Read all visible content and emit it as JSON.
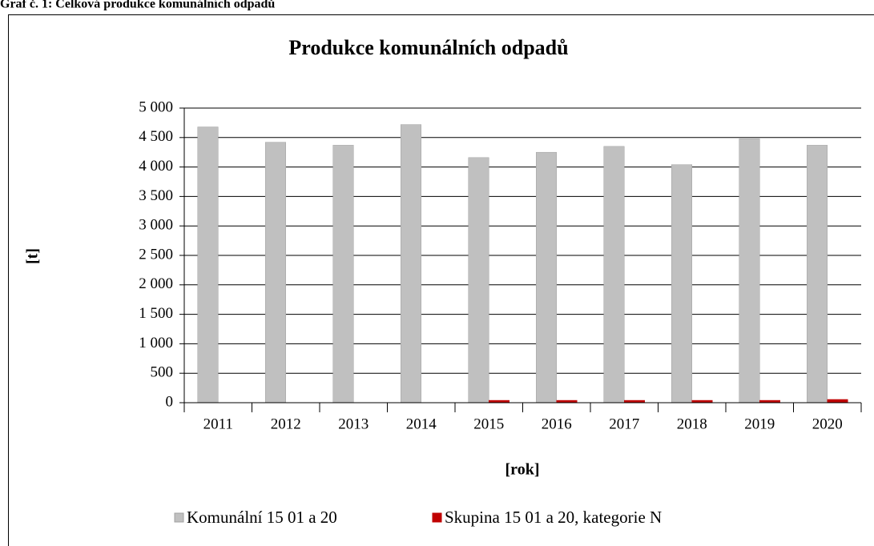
{
  "caption": "Graf č. 1: Celková produkce komunálních odpadů",
  "chart_data": {
    "type": "bar",
    "title": "Produkce komunálních odpadů",
    "y_label": "[t]",
    "x_label": "[rok]",
    "categories": [
      "2011",
      "2012",
      "2013",
      "2014",
      "2015",
      "2016",
      "2017",
      "2018",
      "2019",
      "2020"
    ],
    "series": [
      {
        "name": "Komunální 15 01 a 20",
        "color": "#c0c0c0",
        "values": [
          4680,
          4420,
          4370,
          4720,
          4160,
          4250,
          4350,
          4040,
          4480,
          4370
        ]
      },
      {
        "name": "Skupina 15 01 a 20, kategorie N",
        "color": "#c00000",
        "values": [
          0,
          0,
          0,
          0,
          40,
          40,
          40,
          40,
          40,
          55
        ]
      }
    ],
    "ylim": [
      0,
      5000
    ],
    "yticks": [
      0,
      500,
      {
        "value": 1000,
        "label": "1 000"
      },
      {
        "value": 1500,
        "label": "1 500"
      },
      {
        "value": 2000,
        "label": "2 000"
      },
      {
        "value": 2500,
        "label": "2 500"
      },
      {
        "value": 3000,
        "label": "3 000"
      },
      {
        "value": 3500,
        "label": "3 500"
      },
      {
        "value": 4000,
        "label": "4 000"
      },
      {
        "value": 4500,
        "label": "4 500"
      },
      {
        "value": 5000,
        "label": "5 000"
      }
    ],
    "grid": true,
    "legend": "bottom"
  }
}
